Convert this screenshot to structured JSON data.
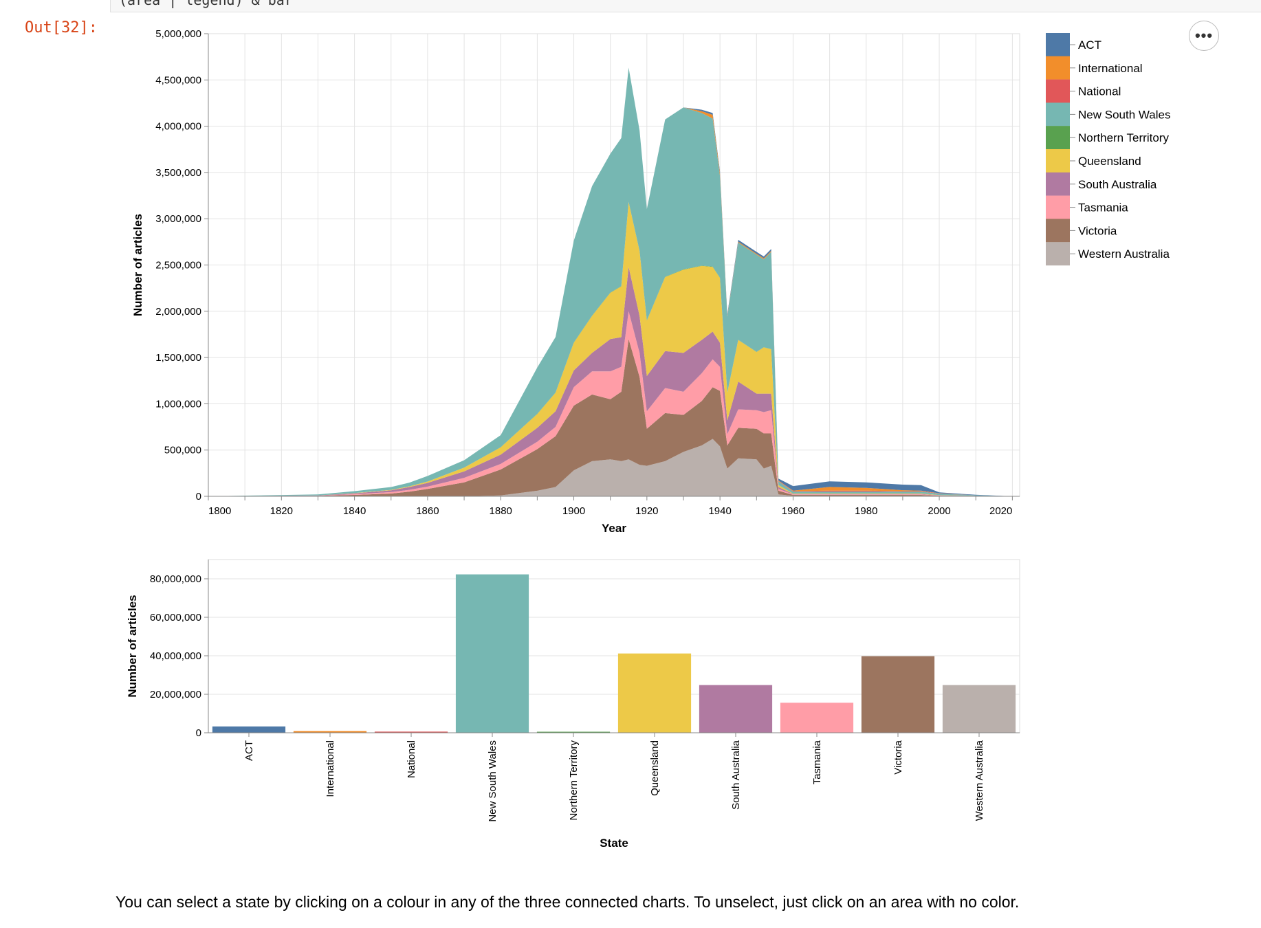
{
  "cell": {
    "code_text": "(area | legend) & bar",
    "out_prompt": "Out[32]:",
    "more_label": "•••"
  },
  "footer_text": "You can select a state by clicking on a colour in any of the three connected charts. To unselect, just click on an area with no color.",
  "colors": {
    "ACT": "#4e79a7",
    "International": "#f28e2b",
    "National": "#e15759",
    "New South Wales": "#76b7b2",
    "Northern Territory": "#59a14f",
    "Queensland": "#edc948",
    "South Australia": "#b07aa1",
    "Tasmania": "#ff9da7",
    "Victoria": "#9c755f",
    "Western Australia": "#bab0ac"
  },
  "chart_data": [
    {
      "type": "area",
      "stacked": true,
      "xlabel": "Year",
      "ylabel": "Number of articles",
      "xlim": [
        1800,
        2022
      ],
      "ylim": [
        0,
        5000000
      ],
      "x_ticks": [
        "1800",
        "1820",
        "1840",
        "1860",
        "1880",
        "1900",
        "1920",
        "1940",
        "1960",
        "1980",
        "2000",
        "2020"
      ],
      "y_ticks": [
        "0",
        "500,000",
        "1,000,000",
        "1,500,000",
        "2,000,000",
        "2,500,000",
        "3,000,000",
        "3,500,000",
        "4,000,000",
        "4,500,000",
        "5,000,000"
      ],
      "legend": {
        "position": "right",
        "entries": [
          "ACT",
          "International",
          "National",
          "New South Wales",
          "Northern Territory",
          "Queensland",
          "South Australia",
          "Tasmania",
          "Victoria",
          "Western Australia"
        ]
      },
      "x": [
        1800,
        1830,
        1840,
        1850,
        1855,
        1860,
        1870,
        1880,
        1890,
        1895,
        1900,
        1905,
        1910,
        1913,
        1915,
        1918,
        1920,
        1925,
        1930,
        1935,
        1938,
        1940,
        1942,
        1945,
        1950,
        1952,
        1954,
        1956,
        1960,
        1970,
        1980,
        1990,
        1995,
        2000,
        2010,
        2020,
        2022
      ],
      "series": [
        {
          "name": "Western Australia",
          "values": [
            0,
            0,
            0,
            0,
            0,
            0,
            0,
            10000,
            60000,
            100000,
            280000,
            380000,
            400000,
            380000,
            400000,
            340000,
            330000,
            380000,
            480000,
            550000,
            620000,
            540000,
            300000,
            410000,
            400000,
            300000,
            330000,
            20000,
            5000,
            5000,
            5000,
            5000,
            5000,
            2000,
            1000,
            0,
            0
          ]
        },
        {
          "name": "Victoria",
          "values": [
            0,
            5000,
            15000,
            30000,
            50000,
            80000,
            150000,
            280000,
            450000,
            550000,
            700000,
            720000,
            650000,
            750000,
            1300000,
            950000,
            400000,
            520000,
            400000,
            480000,
            560000,
            600000,
            250000,
            330000,
            330000,
            380000,
            350000,
            40000,
            10000,
            10000,
            10000,
            10000,
            10000,
            5000,
            2000,
            0,
            0
          ]
        },
        {
          "name": "Tasmania",
          "values": [
            0,
            2000,
            8000,
            15000,
            20000,
            25000,
            50000,
            60000,
            80000,
            100000,
            200000,
            250000,
            300000,
            270000,
            300000,
            260000,
            190000,
            270000,
            250000,
            300000,
            300000,
            260000,
            120000,
            200000,
            200000,
            230000,
            250000,
            20000,
            5000,
            5000,
            5000,
            5000,
            5000,
            2000,
            1000,
            0,
            0
          ]
        },
        {
          "name": "South Australia",
          "values": [
            0,
            2000,
            10000,
            20000,
            30000,
            40000,
            70000,
            100000,
            150000,
            170000,
            180000,
            200000,
            350000,
            320000,
            480000,
            400000,
            380000,
            400000,
            420000,
            360000,
            300000,
            260000,
            150000,
            300000,
            180000,
            200000,
            180000,
            20000,
            5000,
            5000,
            5000,
            5000,
            5000,
            2000,
            1000,
            0,
            0
          ]
        },
        {
          "name": "Queensland",
          "values": [
            0,
            1000,
            3000,
            5000,
            8000,
            15000,
            40000,
            80000,
            150000,
            200000,
            300000,
            400000,
            500000,
            550000,
            700000,
            700000,
            600000,
            800000,
            900000,
            800000,
            700000,
            700000,
            300000,
            450000,
            450000,
            500000,
            480000,
            20000,
            5000,
            5000,
            5000,
            5000,
            5000,
            2000,
            1000,
            0,
            0
          ]
        },
        {
          "name": "Northern Territory",
          "values": [
            0,
            0,
            0,
            0,
            0,
            0,
            0,
            1000,
            2000,
            2000,
            3000,
            3000,
            3000,
            3000,
            3000,
            3000,
            3000,
            3000,
            3000,
            3000,
            3000,
            3000,
            2000,
            2000,
            2000,
            2000,
            2000,
            1000,
            1000,
            1000,
            1000,
            1000,
            1000,
            500,
            0,
            0,
            0
          ]
        },
        {
          "name": "New South Wales",
          "values": [
            0,
            10000,
            20000,
            30000,
            40000,
            60000,
            80000,
            130000,
            500000,
            600000,
            1100000,
            1400000,
            1500000,
            1600000,
            1450000,
            1300000,
            1200000,
            1700000,
            1750000,
            1650000,
            1600000,
            1100000,
            820000,
            1050000,
            1050000,
            950000,
            1050000,
            40000,
            20000,
            20000,
            20000,
            20000,
            20000,
            15000,
            5000,
            0,
            0
          ]
        },
        {
          "name": "National",
          "values": [
            0,
            0,
            0,
            0,
            0,
            0,
            0,
            0,
            0,
            0,
            0,
            0,
            0,
            0,
            0,
            0,
            0,
            0,
            0,
            0,
            0,
            0,
            0,
            0,
            0,
            0,
            0,
            5000,
            5000,
            10000,
            10000,
            5000,
            5000,
            2000,
            0,
            0,
            0
          ]
        },
        {
          "name": "International",
          "values": [
            0,
            0,
            0,
            0,
            0,
            0,
            0,
            0,
            0,
            0,
            0,
            0,
            0,
            0,
            0,
            0,
            0,
            0,
            0,
            20000,
            40000,
            30000,
            10000,
            10000,
            10000,
            10000,
            10000,
            5000,
            5000,
            40000,
            30000,
            10000,
            5000,
            2000,
            0,
            0,
            0
          ]
        },
        {
          "name": "ACT",
          "values": [
            0,
            0,
            0,
            0,
            0,
            0,
            0,
            0,
            0,
            0,
            0,
            0,
            0,
            0,
            0,
            0,
            0,
            0,
            0,
            15000,
            20000,
            20000,
            15000,
            20000,
            20000,
            20000,
            20000,
            20000,
            50000,
            60000,
            60000,
            60000,
            60000,
            10000,
            5000,
            0,
            0
          ]
        }
      ]
    },
    {
      "type": "bar",
      "xlabel": "State",
      "ylabel": "Number of articles",
      "ylim": [
        0,
        90000000
      ],
      "y_ticks": [
        "0",
        "20,000,000",
        "40,000,000",
        "60,000,000",
        "80,000,000"
      ],
      "categories": [
        "ACT",
        "International",
        "National",
        "New South Wales",
        "Northern Territory",
        "Queensland",
        "South Australia",
        "Tasmania",
        "Victoria",
        "Western Australia"
      ],
      "values": [
        3300000,
        900000,
        600000,
        82300000,
        400000,
        41200000,
        24800000,
        15600000,
        39800000,
        24800000
      ]
    }
  ]
}
